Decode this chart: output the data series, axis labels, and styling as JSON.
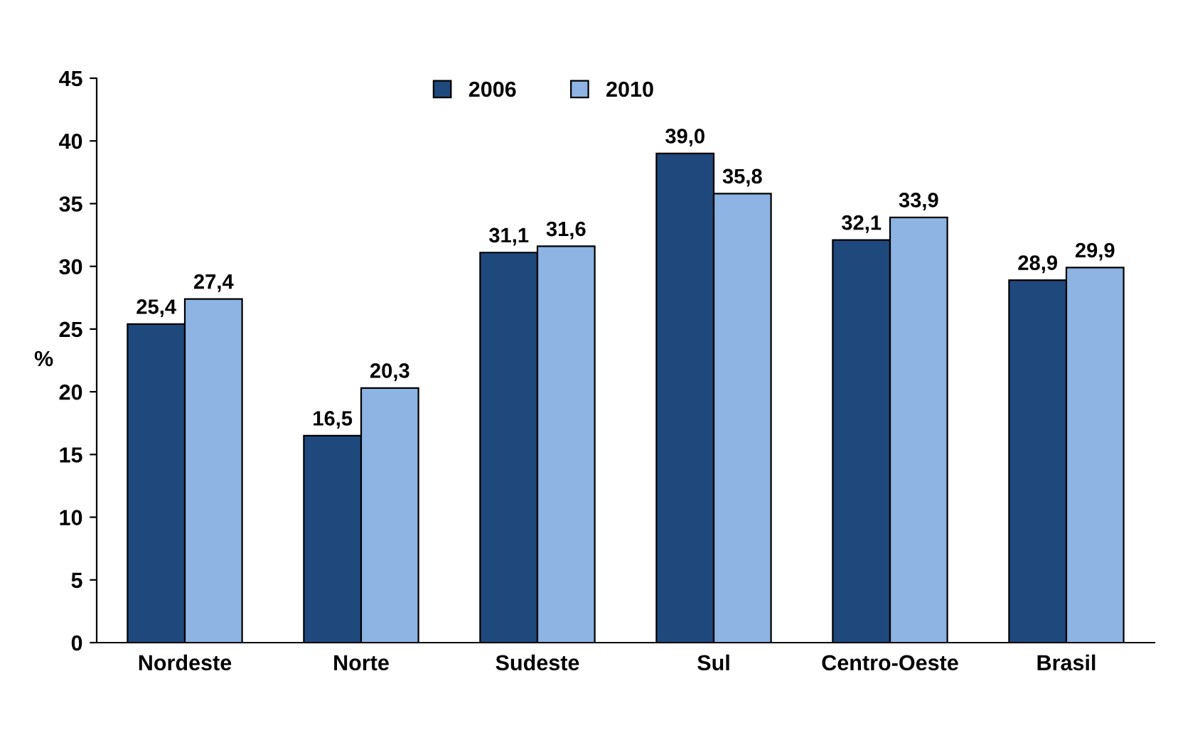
{
  "chart_data": {
    "type": "bar",
    "ylabel": "%",
    "categories": [
      "Nordeste",
      "Norte",
      "Sudeste",
      "Sul",
      "Centro-Oeste",
      "Brasil"
    ],
    "series": [
      {
        "name": "2006",
        "color": "#1f497d",
        "values": [
          25.4,
          16.5,
          31.1,
          39.0,
          32.1,
          28.9
        ],
        "value_labels": [
          "25,4",
          "16,5",
          "31,1",
          "39,0",
          "32,1",
          "28,9"
        ]
      },
      {
        "name": "2010",
        "color": "#8db4e2",
        "values": [
          27.4,
          20.3,
          31.6,
          35.8,
          33.9,
          29.9
        ],
        "value_labels": [
          "27,4",
          "20,3",
          "31,6",
          "35,8",
          "33,9",
          "29,9"
        ]
      }
    ],
    "ylim": [
      0,
      45
    ],
    "yticks": [
      0,
      5,
      10,
      15,
      20,
      25,
      30,
      35,
      40,
      45
    ],
    "grid": false,
    "legend": "top left"
  }
}
